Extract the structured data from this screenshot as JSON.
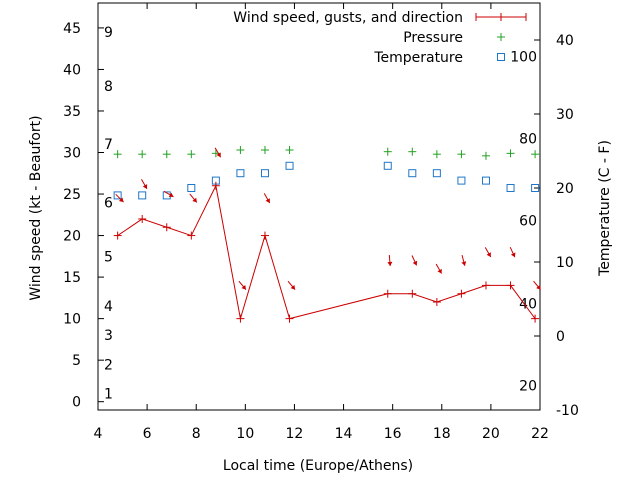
{
  "chart_data": {
    "type": "line",
    "xlabel": "Local time (Europe/Athens)",
    "ylabel_left": "Wind speed (kt - Beaufort)",
    "ylabel_right": "Temperature (C - F)",
    "xlim": [
      4,
      22
    ],
    "ylim_left": [
      -1,
      48
    ],
    "ylim_right": [
      -10,
      45
    ],
    "x_ticks": [
      4,
      6,
      8,
      10,
      12,
      14,
      16,
      18,
      20,
      22
    ],
    "y_ticks_left": [
      0,
      5,
      10,
      15,
      20,
      25,
      30,
      35,
      40,
      45
    ],
    "y_ticks_right": [
      -10,
      0,
      10,
      20,
      30,
      40
    ],
    "beaufort_labels": [
      {
        "label": "1",
        "kt": 1
      },
      {
        "label": "2",
        "kt": 4.5
      },
      {
        "label": "3",
        "kt": 8
      },
      {
        "label": "4",
        "kt": 11.5
      },
      {
        "label": "5",
        "kt": 17.5
      },
      {
        "label": "6",
        "kt": 24
      },
      {
        "label": "7",
        "kt": 31
      },
      {
        "label": "8",
        "kt": 38
      },
      {
        "label": "9",
        "kt": 44.5
      }
    ],
    "fahrenheit_labels": [
      {
        "label": "20",
        "c": -6.7
      },
      {
        "label": "40",
        "c": 4.4
      },
      {
        "label": "60",
        "c": 15.6
      },
      {
        "label": "80",
        "c": 26.7
      },
      {
        "label": "100",
        "c": 37.8
      }
    ],
    "legend": {
      "wind": "Wind speed, gusts, and direction",
      "pressure": "Pressure",
      "temperature": "Temperature"
    },
    "colors": {
      "wind": "#cc0000",
      "pressure": "#22a022",
      "temperature": "#1f77c8"
    },
    "series": [
      {
        "name": "Wind speed, gusts, and direction",
        "x": [
          4.8,
          5.8,
          6.8,
          7.8,
          8.8,
          9.8,
          10.8,
          11.8,
          15.8,
          16.8,
          17.8,
          18.8,
          19.8,
          20.8,
          21.8
        ],
        "y": [
          20,
          22,
          21,
          20,
          26,
          10,
          20,
          10,
          13,
          13,
          12,
          13,
          14,
          14,
          10
        ],
        "arrow_direction_deg": [
          315,
          330,
          300,
          320,
          330,
          320,
          330,
          320,
          355,
          335,
          330,
          345,
          330,
          335,
          320
        ]
      },
      {
        "name": "Pressure",
        "x": [
          4.8,
          5.8,
          6.8,
          7.8,
          8.8,
          9.8,
          10.8,
          11.8,
          15.8,
          16.8,
          17.8,
          18.8,
          19.8,
          20.8,
          21.8
        ],
        "y": [
          29.8,
          29.8,
          29.8,
          29.8,
          29.9,
          30.3,
          30.3,
          30.3,
          30.1,
          30.1,
          29.8,
          29.8,
          29.6,
          29.9,
          29.8
        ]
      },
      {
        "name": "Temperature",
        "x": [
          4.8,
          5.8,
          6.8,
          7.8,
          8.8,
          9.8,
          10.8,
          11.8,
          15.8,
          16.8,
          17.8,
          18.8,
          19.8,
          20.8,
          21.8
        ],
        "y": [
          19,
          19,
          19,
          20,
          21,
          22,
          22,
          23,
          23,
          22,
          22,
          21,
          21,
          20,
          20
        ]
      }
    ]
  }
}
